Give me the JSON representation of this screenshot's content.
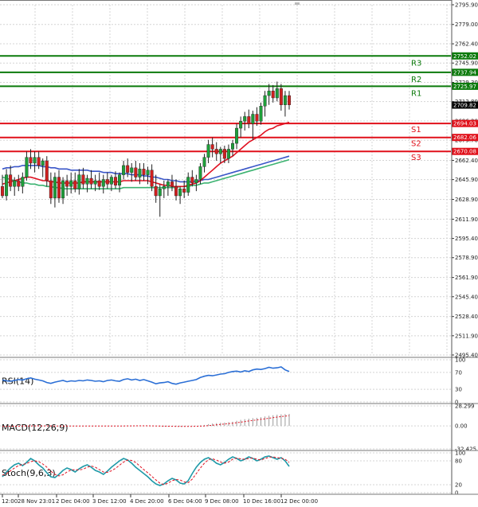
{
  "chart_data": {
    "type": "candlestick",
    "price_axis": {
      "ticks": [
        "2795.90",
        "2779.00",
        "2762.40",
        "2745.90",
        "2729.30",
        "2712.80",
        "2696.20",
        "2679.70",
        "2662.40",
        "2645.90",
        "2628.90",
        "2611.90",
        "2595.40",
        "2578.90",
        "2561.90",
        "2545.40",
        "2528.40",
        "2511.90",
        "2495.40"
      ],
      "current_price": "2709.82"
    },
    "levels": [
      {
        "name": "R3",
        "value": "2752.02",
        "color": "#0b7a0b"
      },
      {
        "name": "R2",
        "value": "2737.94",
        "color": "#0b7a0b"
      },
      {
        "name": "R1",
        "value": "2725.97",
        "color": "#0b7a0b"
      },
      {
        "name": "S1",
        "value": "2694.03",
        "color": "#e0101a"
      },
      {
        "name": "S2",
        "value": "2682.06",
        "color": "#e0101a"
      },
      {
        "name": "S3",
        "value": "2670.08",
        "color": "#e0101a"
      }
    ],
    "time_axis": [
      "12:00",
      "28 Nov 23:01",
      "2 Dec 04:00",
      "3 Dec 12:00",
      "4 Dec 20:00",
      "6 Dec 04:00",
      "9 Dec 08:00",
      "10 Dec 16:00",
      "12 Dec 00:00"
    ],
    "candles": [
      [
        2640,
        2650,
        2630,
        2632
      ],
      [
        2632,
        2655,
        2628,
        2650
      ],
      [
        2650,
        2658,
        2636,
        2640
      ],
      [
        2640,
        2648,
        2632,
        2645
      ],
      [
        2645,
        2650,
        2636,
        2640
      ],
      [
        2640,
        2652,
        2634,
        2648
      ],
      [
        2648,
        2670,
        2645,
        2665
      ],
      [
        2665,
        2672,
        2655,
        2660
      ],
      [
        2660,
        2670,
        2652,
        2665
      ],
      [
        2665,
        2670,
        2655,
        2658
      ],
      [
        2658,
        2664,
        2648,
        2662
      ],
      [
        2662,
        2666,
        2640,
        2645
      ],
      [
        2645,
        2652,
        2625,
        2630
      ],
      [
        2630,
        2652,
        2622,
        2648
      ],
      [
        2648,
        2654,
        2626,
        2630
      ],
      [
        2630,
        2648,
        2625,
        2645
      ],
      [
        2645,
        2650,
        2632,
        2640
      ],
      [
        2640,
        2652,
        2634,
        2645
      ],
      [
        2645,
        2652,
        2635,
        2638
      ],
      [
        2638,
        2655,
        2633,
        2650
      ],
      [
        2650,
        2656,
        2638,
        2642
      ],
      [
        2642,
        2650,
        2635,
        2647
      ],
      [
        2647,
        2654,
        2638,
        2642
      ],
      [
        2642,
        2650,
        2636,
        2645
      ],
      [
        2645,
        2652,
        2637,
        2640
      ],
      [
        2640,
        2650,
        2634,
        2646
      ],
      [
        2646,
        2652,
        2638,
        2642
      ],
      [
        2642,
        2650,
        2636,
        2648
      ],
      [
        2648,
        2653,
        2638,
        2641
      ],
      [
        2641,
        2652,
        2635,
        2650
      ],
      [
        2650,
        2662,
        2646,
        2658
      ],
      [
        2658,
        2664,
        2648,
        2652
      ],
      [
        2652,
        2660,
        2644,
        2656
      ],
      [
        2656,
        2662,
        2645,
        2648
      ],
      [
        2648,
        2660,
        2642,
        2655
      ],
      [
        2655,
        2660,
        2645,
        2650
      ],
      [
        2650,
        2657,
        2642,
        2654
      ],
      [
        2654,
        2659,
        2636,
        2640
      ],
      [
        2640,
        2650,
        2626,
        2632
      ],
      [
        2632,
        2642,
        2614,
        2638
      ],
      [
        2638,
        2645,
        2630,
        2640
      ],
      [
        2640,
        2646,
        2632,
        2644
      ],
      [
        2644,
        2650,
        2636,
        2640
      ],
      [
        2640,
        2646,
        2628,
        2632
      ],
      [
        2632,
        2640,
        2625,
        2638
      ],
      [
        2638,
        2645,
        2630,
        2635
      ],
      [
        2635,
        2652,
        2632,
        2648
      ],
      [
        2648,
        2654,
        2640,
        2643
      ],
      [
        2643,
        2650,
        2636,
        2646
      ],
      [
        2646,
        2660,
        2642,
        2657
      ],
      [
        2657,
        2668,
        2652,
        2665
      ],
      [
        2665,
        2680,
        2660,
        2676
      ],
      [
        2676,
        2682,
        2665,
        2672
      ],
      [
        2672,
        2678,
        2662,
        2668
      ],
      [
        2668,
        2674,
        2660,
        2672
      ],
      [
        2672,
        2675,
        2660,
        2664
      ],
      [
        2664,
        2676,
        2660,
        2672
      ],
      [
        2672,
        2680,
        2666,
        2677
      ],
      [
        2677,
        2694,
        2672,
        2690
      ],
      [
        2690,
        2700,
        2682,
        2696
      ],
      [
        2696,
        2704,
        2688,
        2700
      ],
      [
        2700,
        2706,
        2690,
        2694
      ],
      [
        2694,
        2705,
        2680,
        2702
      ],
      [
        2702,
        2708,
        2692,
        2696
      ],
      [
        2696,
        2712,
        2693,
        2709
      ],
      [
        2709,
        2722,
        2700,
        2718
      ],
      [
        2718,
        2728,
        2710,
        2722
      ],
      [
        2722,
        2727,
        2712,
        2716
      ],
      [
        2716,
        2730,
        2713,
        2724
      ],
      [
        2724,
        2728,
        2705,
        2710
      ],
      [
        2710,
        2722,
        2700,
        2718
      ],
      [
        2718,
        2722,
        2706,
        2710
      ]
    ],
    "ma_fast": [
      2642,
      2643,
      2644,
      2645,
      2646,
      2647,
      2648,
      2648,
      2647,
      2646,
      2645,
      2645,
      2644,
      2644,
      2643,
      2643,
      2643,
      2643,
      2643,
      2643,
      2644,
      2644,
      2644,
      2644,
      2644,
      2644,
      2644,
      2644,
      2644,
      2644,
      2645,
      2645,
      2645,
      2645,
      2645,
      2645,
      2645,
      2644,
      2643,
      2642,
      2641,
      2641,
      2640,
      2640,
      2640,
      2640,
      2641,
      2642,
      2643,
      2645,
      2648,
      2651,
      2654,
      2657,
      2660,
      2662,
      2664,
      2666,
      2669,
      2672,
      2675,
      2678,
      2680,
      2682,
      2684,
      2687,
      2689,
      2690,
      2692,
      2693,
      2694,
      2695
    ],
    "ma_mid": [
      2655,
      2656,
      2656,
      2657,
      2657,
      2658,
      2658,
      2658,
      2658,
      2658,
      2657,
      2657,
      2656,
      2656,
      2655,
      2655,
      2655,
      2654,
      2654,
      2654,
      2654,
      2654,
      2653,
      2653,
      2653,
      2652,
      2652,
      2652,
      2651,
      2651,
      2651,
      2651,
      2650,
      2650,
      2650,
      2649,
      2649,
      2648,
      2648,
      2647,
      2646,
      2646,
      2645,
      2645,
      2644,
      2644,
      2644,
      2644,
      2645,
      2645,
      2646,
      2646,
      2647,
      2648,
      2649,
      2650,
      2651,
      2652,
      2653,
      2654,
      2655,
      2656,
      2657,
      2658,
      2659,
      2660,
      2661,
      2662,
      2663,
      2664,
      2665,
      2666
    ],
    "ma_slow": [
      2648,
      2647,
      2646,
      2645,
      2644,
      2643,
      2643,
      2642,
      2642,
      2641,
      2641,
      2640,
      2640,
      2639,
      2639,
      2638,
      2638,
      2638,
      2638,
      2638,
      2638,
      2638,
      2638,
      2638,
      2638,
      2638,
      2638,
      2638,
      2638,
      2638,
      2639,
      2639,
      2639,
      2639,
      2639,
      2639,
      2639,
      2639,
      2639,
      2639,
      2639,
      2639,
      2639,
      2639,
      2640,
      2640,
      2640,
      2641,
      2641,
      2642,
      2643,
      2643,
      2644,
      2645,
      2646,
      2647,
      2648,
      2649,
      2650,
      2651,
      2652,
      2653,
      2654,
      2655,
      2656,
      2657,
      2658,
      2659,
      2660,
      2661,
      2662,
      2663
    ],
    "rsi": {
      "label": "RSI(14)",
      "ticks": [
        "100",
        "70",
        "30",
        "0"
      ],
      "values": [
        52,
        50,
        49,
        51,
        53,
        52,
        55,
        57,
        54,
        52,
        50,
        46,
        44,
        47,
        49,
        51,
        48,
        50,
        49,
        51,
        50,
        52,
        51,
        49,
        50,
        48,
        51,
        52,
        50,
        49,
        53,
        55,
        52,
        54,
        51,
        53,
        50,
        47,
        43,
        45,
        46,
        48,
        44,
        42,
        45,
        47,
        49,
        51,
        53,
        58,
        61,
        63,
        62,
        64,
        66,
        67,
        70,
        72,
        73,
        71,
        74,
        72,
        76,
        78,
        77,
        79,
        82,
        80,
        81,
        83,
        76,
        72
      ]
    },
    "macd": {
      "label": "MACD(12,26,9)",
      "ticks": [
        "28.299",
        "0.00",
        "-32.425"
      ],
      "hist": [
        -0.6,
        -0.5,
        -0.3,
        -0.2,
        -0.2,
        -0.1,
        0.1,
        0.3,
        0.3,
        0.2,
        0.2,
        0.1,
        0.0,
        -0.2,
        -0.3,
        -0.3,
        -0.3,
        -0.2,
        -0.2,
        -0.2,
        -0.1,
        0.0,
        0.0,
        0.0,
        0.0,
        0.0,
        0.0,
        0.0,
        0.0,
        0.0,
        0.2,
        0.3,
        0.3,
        0.2,
        0.2,
        0.2,
        0.1,
        0.0,
        -0.4,
        -0.8,
        -0.9,
        -0.8,
        -0.8,
        -1.0,
        -1.0,
        -0.9,
        -0.6,
        -0.3,
        0.0,
        0.6,
        1.4,
        2.6,
        3.4,
        4.0,
        4.5,
        4.8,
        5.3,
        6.0,
        7.3,
        8.6,
        9.6,
        10.3,
        11.0,
        11.5,
        12.3,
        13.4,
        14.4,
        15.1,
        15.9,
        16.4,
        16.8,
        17.0
      ],
      "signal": [
        -0.7,
        -0.6,
        -0.5,
        -0.4,
        -0.3,
        -0.2,
        -0.1,
        0.0,
        0.1,
        0.1,
        0.1,
        0.1,
        0.1,
        0.0,
        0.0,
        -0.1,
        -0.1,
        -0.1,
        -0.1,
        -0.1,
        -0.1,
        -0.1,
        -0.1,
        0.0,
        0.0,
        0.0,
        0.0,
        0.0,
        0.0,
        0.0,
        0.0,
        0.1,
        0.1,
        0.2,
        0.2,
        0.2,
        0.2,
        0.1,
        0.0,
        -0.2,
        -0.3,
        -0.4,
        -0.5,
        -0.6,
        -0.7,
        -0.7,
        -0.7,
        -0.6,
        -0.5,
        -0.3,
        0.0,
        0.5,
        1.0,
        1.6,
        2.2,
        2.7,
        3.3,
        3.9,
        4.6,
        5.4,
        6.2,
        7.0,
        7.8,
        8.5,
        9.3,
        10.1,
        10.9,
        11.7,
        12.5,
        13.2,
        13.9,
        14.5
      ]
    },
    "stoch": {
      "label": "Stoch(9,6,3)",
      "ticks": [
        "100",
        "80",
        "20",
        "0"
      ],
      "k": [
        40,
        52,
        62,
        70,
        74,
        68,
        76,
        86,
        80,
        70,
        62,
        50,
        40,
        38,
        46,
        56,
        62,
        58,
        52,
        60,
        66,
        70,
        64,
        56,
        52,
        46,
        54,
        64,
        72,
        80,
        86,
        82,
        74,
        64,
        56,
        48,
        40,
        30,
        22,
        18,
        22,
        30,
        36,
        32,
        24,
        22,
        30,
        48,
        64,
        76,
        84,
        88,
        82,
        74,
        70,
        76,
        84,
        90,
        86,
        80,
        84,
        90,
        86,
        80,
        84,
        90,
        92,
        88,
        84,
        88,
        80,
        66
      ],
      "d": [
        44,
        48,
        55,
        62,
        68,
        71,
        73,
        78,
        80,
        78,
        72,
        64,
        54,
        46,
        42,
        45,
        52,
        57,
        58,
        57,
        59,
        64,
        67,
        64,
        58,
        52,
        51,
        55,
        61,
        69,
        77,
        82,
        81,
        76,
        67,
        58,
        50,
        41,
        32,
        24,
        20,
        24,
        30,
        33,
        32,
        27,
        25,
        34,
        48,
        62,
        74,
        83,
        85,
        82,
        77,
        74,
        77,
        84,
        87,
        85,
        84,
        86,
        87,
        84,
        82,
        86,
        89,
        90,
        88,
        87,
        84,
        76
      ]
    }
  }
}
